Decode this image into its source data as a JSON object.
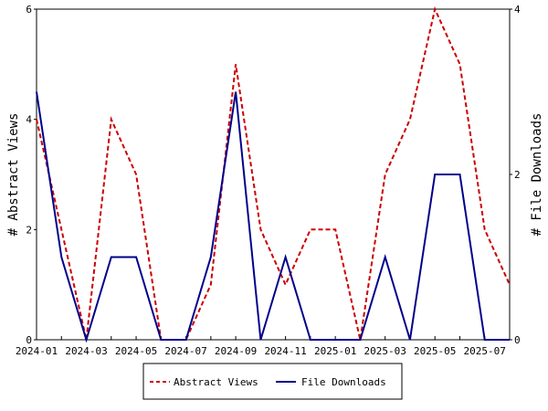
{
  "chart_data": {
    "type": "line",
    "x": [
      "2024-01",
      "2024-02",
      "2024-03",
      "2024-04",
      "2024-05",
      "2024-06",
      "2024-07",
      "2024-08",
      "2024-09",
      "2024-10",
      "2024-11",
      "2024-12",
      "2025-01",
      "2025-02",
      "2025-03",
      "2025-04",
      "2025-05",
      "2025-06",
      "2025-07",
      "2025-08"
    ],
    "x_ticks": [
      "2024-01",
      "2024-03",
      "2024-05",
      "2024-07",
      "2024-09",
      "2024-11",
      "2025-01",
      "2025-03",
      "2025-05",
      "2025-07"
    ],
    "series": [
      {
        "name": "Abstract Views",
        "axis": "left",
        "color": "#cc0000",
        "style": "dashed",
        "values": [
          4,
          2,
          0,
          4,
          3,
          0,
          0,
          1,
          5,
          2,
          1,
          2,
          2,
          0,
          3,
          4,
          6,
          5,
          2,
          1
        ]
      },
      {
        "name": "File Downloads",
        "axis": "right",
        "color": "#00008b",
        "style": "solid",
        "values": [
          3,
          1,
          0,
          1,
          1,
          0,
          0,
          1,
          3,
          0,
          1,
          0,
          0,
          0,
          1,
          0,
          2,
          2,
          0,
          0
        ]
      }
    ],
    "ylabel": "# Abstract Views",
    "y2label": "# File Downloads",
    "ylim": [
      0,
      6
    ],
    "y_ticks": [
      0,
      2,
      4,
      6
    ],
    "y2lim": [
      0,
      4
    ],
    "y2_ticks": [
      0,
      2,
      4
    ],
    "legend_position": "bottom-center",
    "grid": false
  }
}
